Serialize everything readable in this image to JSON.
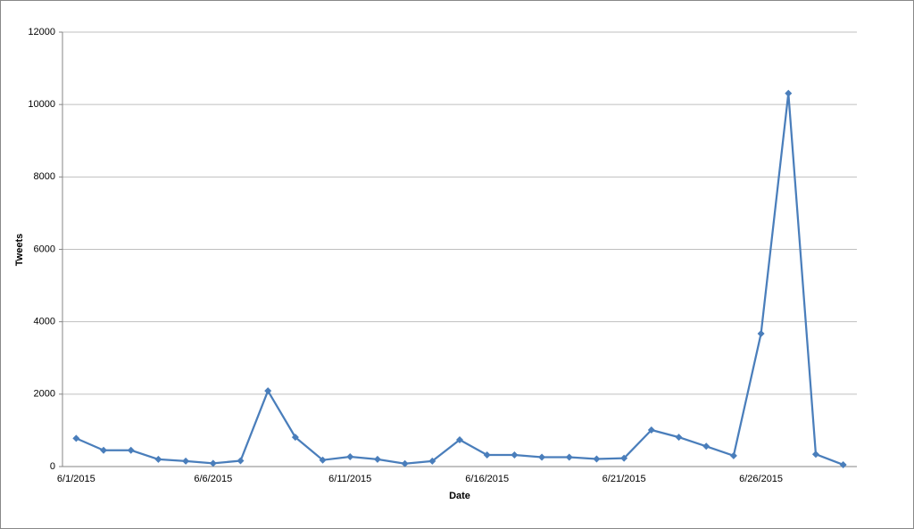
{
  "chart_data": {
    "type": "line",
    "x_label": "Date",
    "y_label": "Tweets",
    "categories": [
      "6/1/2015",
      null,
      null,
      null,
      null,
      "6/6/2015",
      null,
      null,
      null,
      null,
      "6/11/2015",
      null,
      null,
      null,
      null,
      "6/16/2015",
      null,
      null,
      null,
      null,
      "6/21/2015",
      null,
      null,
      null,
      null,
      "6/26/2015",
      null,
      null,
      null
    ],
    "series": [
      {
        "name": "Tweets",
        "color": "#4a7ebb",
        "values": [
          780,
          450,
          450,
          200,
          150,
          90,
          160,
          2090,
          810,
          180,
          270,
          200,
          80,
          150,
          740,
          320,
          320,
          260,
          260,
          210,
          230,
          1010,
          810,
          560,
          300,
          3670,
          10310,
          340,
          50
        ]
      }
    ],
    "ylim": [
      0,
      12000
    ],
    "yticks": [
      0,
      2000,
      4000,
      6000,
      8000,
      10000,
      12000
    ],
    "grid": true
  }
}
